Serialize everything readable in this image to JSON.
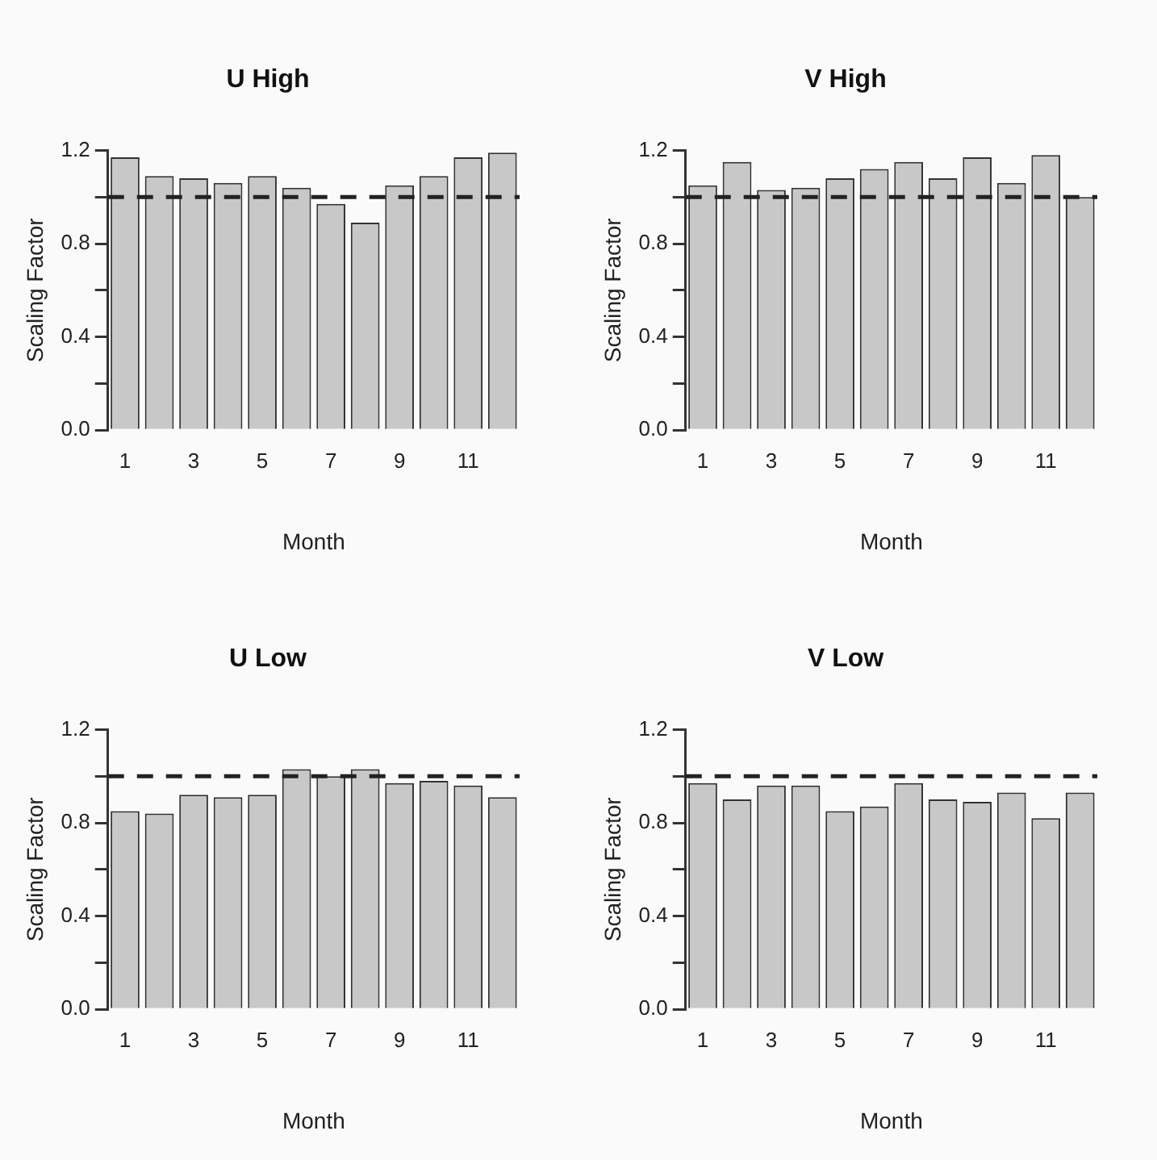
{
  "chart_data": [
    {
      "type": "bar",
      "title": "U High",
      "xlabel": "Month",
      "ylabel": "Scaling Factor",
      "categories": [
        "1",
        null,
        "3",
        null,
        "5",
        null,
        "7",
        null,
        "9",
        null,
        "11",
        null
      ],
      "values": [
        1.17,
        1.09,
        1.08,
        1.06,
        1.09,
        1.04,
        0.97,
        0.89,
        1.05,
        1.09,
        1.17,
        1.19
      ],
      "color": "#c8c8c8",
      "ylim": [
        0,
        1.2
      ],
      "yticks": [
        {
          "value": 0,
          "label": "0.0"
        },
        {
          "value": 0.2,
          "label": null
        },
        0.4,
        {
          "value": 0.6,
          "label": null
        },
        0.8,
        {
          "value": 1.0,
          "label": null
        },
        1.2
      ],
      "grid": false,
      "legend": false,
      "ref_lines": [
        {
          "axis": "y",
          "value": 1,
          "line_style": "dashed",
          "color": "#222222"
        }
      ]
    },
    {
      "type": "bar",
      "title": "V High",
      "xlabel": "Month",
      "ylabel": "Scaling Factor",
      "categories": [
        "1",
        null,
        "3",
        null,
        "5",
        null,
        "7",
        null,
        "9",
        null,
        "11",
        null
      ],
      "values": [
        1.05,
        1.15,
        1.03,
        1.04,
        1.08,
        1.12,
        1.15,
        1.08,
        1.17,
        1.06,
        1.18,
        1.0
      ],
      "color": "#c8c8c8",
      "ylim": [
        0,
        1.2
      ],
      "yticks": [
        {
          "value": 0,
          "label": "0.0"
        },
        {
          "value": 0.2,
          "label": null
        },
        0.4,
        {
          "value": 0.6,
          "label": null
        },
        0.8,
        {
          "value": 1.0,
          "label": null
        },
        1.2
      ],
      "grid": false,
      "legend": false,
      "ref_lines": [
        {
          "axis": "y",
          "value": 1,
          "line_style": "dashed",
          "color": "#222222"
        }
      ]
    },
    {
      "type": "bar",
      "title": "U Low",
      "xlabel": "Month",
      "ylabel": "Scaling Factor",
      "categories": [
        "1",
        null,
        "3",
        null,
        "5",
        null,
        "7",
        null,
        "9",
        null,
        "11",
        null
      ],
      "values": [
        0.85,
        0.84,
        0.92,
        0.91,
        0.92,
        1.03,
        1.0,
        1.03,
        0.97,
        0.98,
        0.96,
        0.91
      ],
      "color": "#c8c8c8",
      "ylim": [
        0,
        1.2
      ],
      "yticks": [
        {
          "value": 0,
          "label": "0.0"
        },
        {
          "value": 0.2,
          "label": null
        },
        0.4,
        {
          "value": 0.6,
          "label": null
        },
        0.8,
        {
          "value": 1.0,
          "label": null
        },
        1.2
      ],
      "grid": false,
      "legend": false,
      "ref_lines": [
        {
          "axis": "y",
          "value": 1,
          "line_style": "dashed",
          "color": "#222222"
        }
      ]
    },
    {
      "type": "bar",
      "title": "V Low",
      "xlabel": "Month",
      "ylabel": "Scaling Factor",
      "categories": [
        "1",
        null,
        "3",
        null,
        "5",
        null,
        "7",
        null,
        "9",
        null,
        "11",
        null
      ],
      "values": [
        0.97,
        0.9,
        0.96,
        0.96,
        0.85,
        0.87,
        0.97,
        0.9,
        0.89,
        0.93,
        0.82,
        0.93
      ],
      "color": "#c8c8c8",
      "ylim": [
        0,
        1.2
      ],
      "yticks": [
        {
          "value": 0,
          "label": "0.0"
        },
        {
          "value": 0.2,
          "label": null
        },
        0.4,
        {
          "value": 0.6,
          "label": null
        },
        0.8,
        {
          "value": 1.0,
          "label": null
        },
        1.2
      ],
      "grid": false,
      "legend": false,
      "ref_lines": [
        {
          "axis": "y",
          "value": 1,
          "line_style": "dashed",
          "color": "#222222"
        }
      ]
    }
  ]
}
